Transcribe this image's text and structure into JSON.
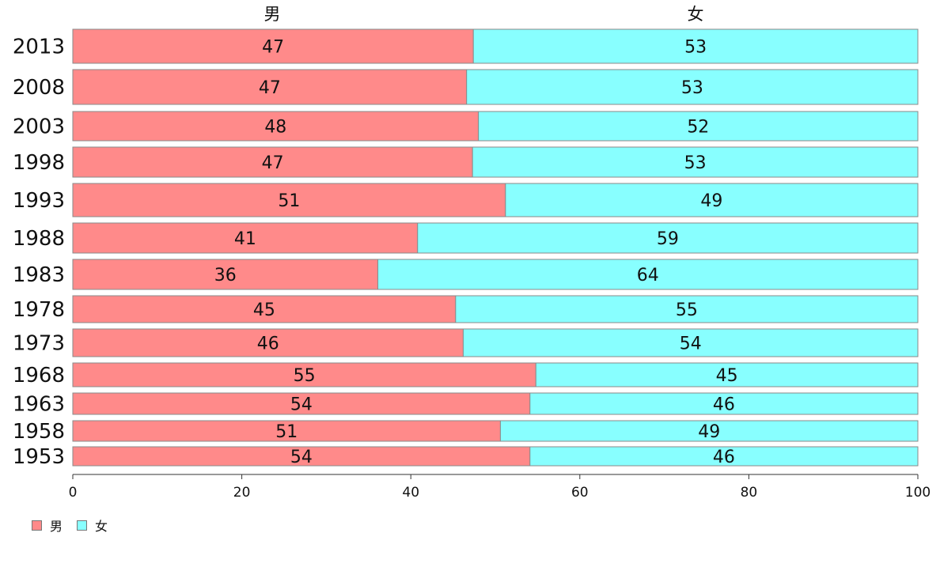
{
  "chart_data": {
    "type": "bar",
    "orientation": "horizontal",
    "stacked": true,
    "categories": [
      "2013",
      "2008",
      "2003",
      "1998",
      "1993",
      "1988",
      "1983",
      "1978",
      "1973",
      "1968",
      "1963",
      "1958",
      "1953"
    ],
    "series": [
      {
        "name": "男",
        "color": "#ff8a8a",
        "values": [
          47,
          47,
          48,
          47,
          51,
          41,
          36,
          45,
          46,
          55,
          54,
          51,
          54
        ],
        "position": [
          47.4,
          46.6,
          48.0,
          47.3,
          51.2,
          40.8,
          36.1,
          45.3,
          46.2,
          54.8,
          54.1,
          50.6,
          54.1
        ]
      },
      {
        "name": "女",
        "color": "#88ffff",
        "values": [
          53,
          53,
          52,
          53,
          49,
          59,
          64,
          55,
          54,
          45,
          46,
          49,
          46
        ]
      }
    ],
    "xlim": [
      0,
      100
    ],
    "xticks": [
      "0",
      "20",
      "40",
      "60",
      "80",
      "100"
    ],
    "legend_placement": "bottom-left"
  }
}
